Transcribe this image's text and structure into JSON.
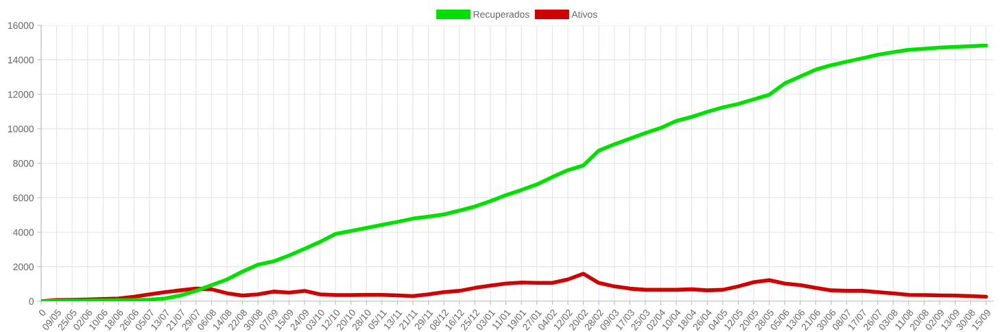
{
  "chart_data": {
    "type": "line",
    "categories": [
      "0",
      "09/05",
      "25/05",
      "02/06",
      "10/06",
      "18/06",
      "26/06",
      "05/07",
      "13/07",
      "21/07",
      "29/07",
      "06/08",
      "14/08",
      "22/08",
      "30/08",
      "07/09",
      "15/09",
      "24/09",
      "03/10",
      "12/10",
      "20/10",
      "28/10",
      "05/11",
      "13/11",
      "21/11",
      "29/11",
      "08/12",
      "16/12",
      "25/12",
      "03/01",
      "11/01",
      "19/01",
      "27/01",
      "04/02",
      "12/02",
      "20/02",
      "28/02",
      "09/03",
      "17/03",
      "25/03",
      "02/04",
      "10/04",
      "18/04",
      "26/04",
      "04/05",
      "12/05",
      "20/05",
      "28/05",
      "05/06",
      "13/06",
      "21/06",
      "30/06",
      "08/07",
      "17/07",
      "26/07",
      "03/08",
      "11/08",
      "20/08",
      "02/09",
      "13/09",
      "30/08",
      "15/09"
    ],
    "series": [
      {
        "name": "Recuperados",
        "color": "#00e000",
        "values": [
          0,
          20,
          30,
          40,
          50,
          60,
          70,
          90,
          160,
          330,
          600,
          930,
          1260,
          1720,
          2120,
          2310,
          2650,
          3040,
          3440,
          3900,
          4070,
          4250,
          4430,
          4600,
          4790,
          4900,
          5030,
          5250,
          5490,
          5800,
          6150,
          6450,
          6770,
          7200,
          7600,
          7870,
          8730,
          9100,
          9420,
          9750,
          10050,
          10450,
          10690,
          10980,
          11240,
          11440,
          11710,
          11970,
          12630,
          13030,
          13430,
          13690,
          13890,
          14090,
          14290,
          14440,
          14580,
          14640,
          14710,
          14750,
          14790,
          14830
        ]
      },
      {
        "name": "Ativos",
        "color": "#d00000",
        "values": [
          0,
          70,
          80,
          100,
          130,
          160,
          260,
          400,
          530,
          630,
          730,
          690,
          460,
          330,
          400,
          560,
          500,
          600,
          400,
          360,
          360,
          370,
          370,
          340,
          300,
          400,
          530,
          600,
          770,
          900,
          1020,
          1080,
          1060,
          1060,
          1260,
          1590,
          1060,
          860,
          730,
          660,
          660,
          660,
          690,
          630,
          660,
          860,
          1100,
          1220,
          1020,
          930,
          770,
          630,
          600,
          600,
          530,
          460,
          370,
          360,
          340,
          330,
          300,
          260
        ]
      }
    ],
    "ylim": [
      0,
      16000
    ],
    "yticks": [
      0,
      2000,
      4000,
      6000,
      8000,
      10000,
      12000,
      14000,
      16000
    ],
    "grid": true,
    "legend": "top",
    "marker": "none",
    "line_style": "solid"
  }
}
